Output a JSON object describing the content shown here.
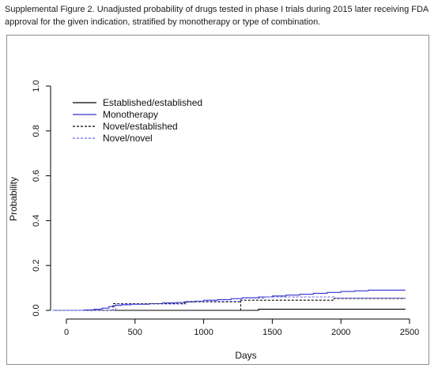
{
  "caption": "Supplemental Figure 2. Unadjusted probability of drugs tested in phase I trials during 2015 later receiving FDA approval for the given indication, stratified by monotherapy or type of combination.",
  "chart_data": {
    "type": "line",
    "title": "",
    "xlabel": "Days",
    "ylabel": "Probability",
    "xlim": [
      -100,
      2500
    ],
    "ylim": [
      0,
      1.0
    ],
    "xticks": [
      0,
      500,
      1000,
      1500,
      2000,
      2500
    ],
    "yticks": [
      0.0,
      0.2,
      0.4,
      0.6,
      0.8,
      1.0
    ],
    "xtick_labels": [
      "0",
      "500",
      "1000",
      "1500",
      "2000",
      "2500"
    ],
    "ytick_labels": [
      "0.0",
      "0.2",
      "0.4",
      "0.6",
      "0.8",
      "1.0"
    ],
    "grid": false,
    "legend_position": "top-left",
    "series": [
      {
        "name": "Established/established",
        "color": "#000000",
        "dash": "solid",
        "x": [
          -100,
          1400,
          1400,
          2470
        ],
        "y": [
          0.0,
          0.0,
          0.005,
          0.005
        ]
      },
      {
        "name": "Monotherapy",
        "color": "#3333cc",
        "dash": "solid",
        "x": [
          -100,
          130,
          200,
          260,
          310,
          350,
          400,
          470,
          600,
          700,
          800,
          870,
          930,
          1000,
          1100,
          1200,
          1280,
          1400,
          1500,
          1600,
          1700,
          1800,
          1900,
          2000,
          2100,
          2200,
          2470
        ],
        "y": [
          0.0,
          0.002,
          0.005,
          0.01,
          0.017,
          0.022,
          0.025,
          0.027,
          0.03,
          0.033,
          0.035,
          0.038,
          0.041,
          0.045,
          0.048,
          0.052,
          0.056,
          0.06,
          0.064,
          0.068,
          0.072,
          0.076,
          0.08,
          0.084,
          0.087,
          0.09,
          0.09
        ]
      },
      {
        "name": "Novel/established",
        "color": "#000000",
        "dash": "dashed",
        "x": [
          -100,
          300,
          340,
          600,
          860,
          1000,
          1270,
          1400,
          1950,
          2470
        ],
        "y": [
          0.0,
          0.0,
          0.03,
          0.03,
          0.038,
          0.038,
          0.045,
          0.045,
          0.053,
          0.053
        ],
        "drop_x": 1270
      },
      {
        "name": "Novel/novel",
        "color": "#6666ee",
        "dash": "dashed",
        "x": [
          -100,
          360,
          360,
          870,
          870,
          1270,
          1270,
          1450,
          1450,
          1950,
          1950,
          2470
        ],
        "y": [
          0.0,
          0.0,
          0.028,
          0.028,
          0.04,
          0.04,
          0.055,
          0.055,
          0.06,
          0.06,
          0.055,
          0.055
        ]
      }
    ]
  }
}
